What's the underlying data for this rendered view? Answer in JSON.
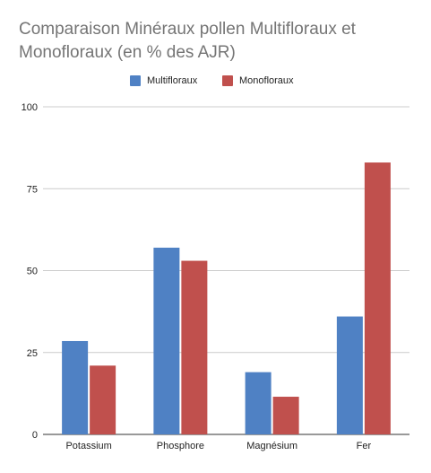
{
  "chart_data": {
    "type": "bar",
    "title": "Comparaison Minéraux pollen Multifloraux et Monofloraux (en % des AJR)",
    "categories": [
      "Potassium",
      "Phosphore",
      "Magnésium",
      "Fer"
    ],
    "series": [
      {
        "name": "Multifloraux",
        "color": "#4F81C4",
        "values": [
          28.5,
          57,
          19,
          36
        ]
      },
      {
        "name": "Monofloraux",
        "color": "#C0504D",
        "values": [
          21,
          53,
          11.5,
          83
        ]
      }
    ],
    "ylim": [
      0,
      100
    ],
    "yticks": [
      "0",
      "25",
      "50",
      "75",
      "100"
    ],
    "grid": true,
    "legend_position": "top"
  }
}
